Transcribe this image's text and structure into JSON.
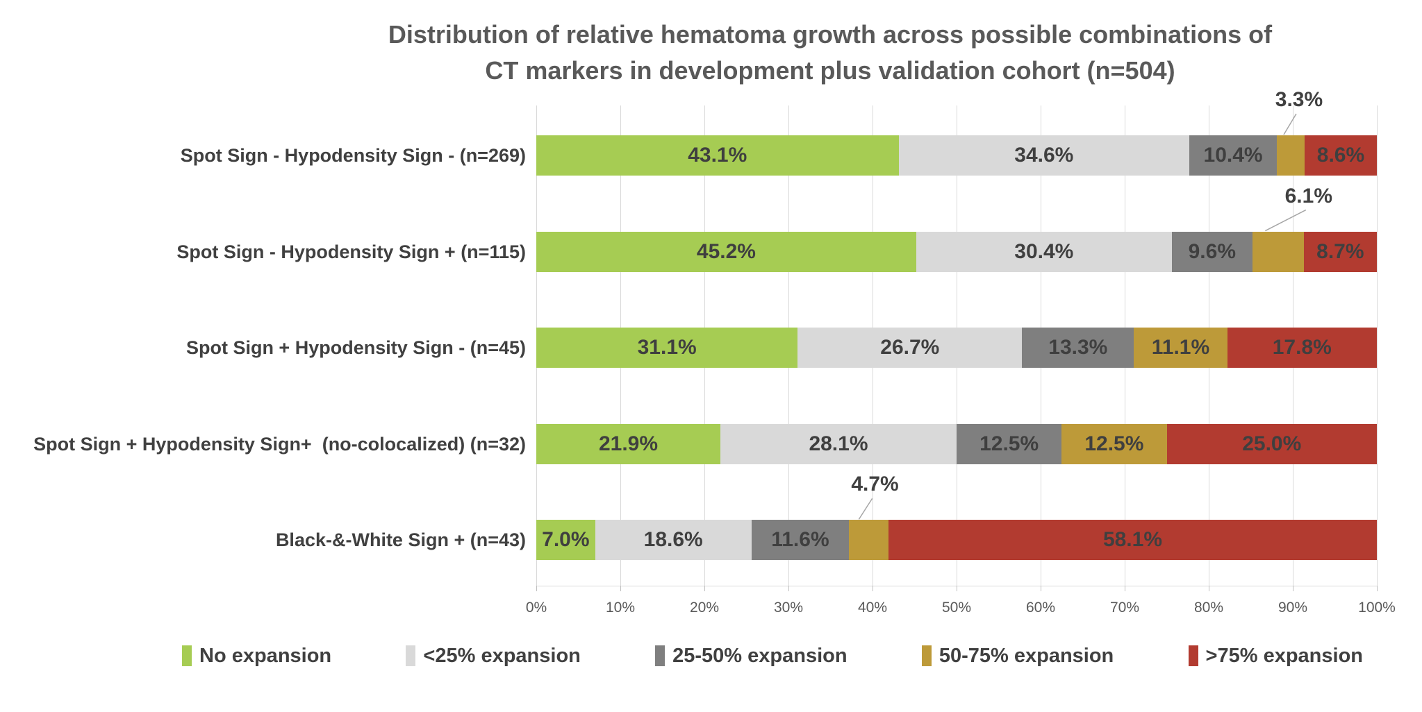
{
  "chart_data": {
    "type": "bar",
    "stacked": true,
    "orientation": "horizontal",
    "title_text": "Distribution of relative hematoma growth across possible combinations of\nCT markers in development plus validation cohort (n=504)",
    "title": "Distribution of relative hematoma growth across possible combinations of CT markers in development plus validation cohort (n=504)",
    "categories": [
      "Spot Sign - Hypodensity Sign - (n=269)",
      "Spot Sign - Hypodensity Sign + (n=115)",
      "Spot Sign + Hypodensity Sign - (n=45)",
      "Spot Sign + Hypodensity Sign+  (no-colocalized) (n=32)",
      "Black-&-White Sign + (n=43)"
    ],
    "series": [
      {
        "name": "No expansion",
        "color": "#A6CC53",
        "values": [
          43.1,
          45.2,
          31.1,
          21.9,
          7.0
        ]
      },
      {
        "name": "<25% expansion",
        "color": "#D9D9D9",
        "values": [
          34.6,
          30.4,
          26.7,
          28.1,
          18.6
        ]
      },
      {
        "name": "25-50% expansion",
        "color": "#7F7F7F",
        "values": [
          10.4,
          9.6,
          13.3,
          12.5,
          11.6
        ]
      },
      {
        "name": "50-75% expansion",
        "color": "#BD9A39",
        "values": [
          3.3,
          6.1,
          11.1,
          12.5,
          4.7
        ]
      },
      {
        "name": ">75% expansion",
        "color": "#B23B30",
        "values": [
          8.6,
          8.7,
          17.8,
          25.0,
          58.1
        ]
      }
    ],
    "data_label_format": "0.0%",
    "callouts": [
      {
        "row": 0,
        "series": 3,
        "label": "3.3%",
        "dx": 12
      },
      {
        "row": 1,
        "series": 3,
        "label": "6.1%",
        "dx": 44
      },
      {
        "row": 4,
        "series": 3,
        "label": "4.7%",
        "dx": 9
      }
    ],
    "x_axis": {
      "min": 0,
      "max": 100,
      "ticks": [
        "0%",
        "10%",
        "20%",
        "30%",
        "40%",
        "50%",
        "60%",
        "70%",
        "80%",
        "90%",
        "100%"
      ]
    },
    "grid": "vertical",
    "legend_position": "bottom"
  },
  "colors": {
    "title_text": "#595959",
    "category_text": "#404040",
    "data_label_text": "#3F3F3F",
    "tick_text": "#595959",
    "gridline": "#D9D9D9",
    "leader_line": "#A6A6A6",
    "background": "#FFFFFF"
  }
}
